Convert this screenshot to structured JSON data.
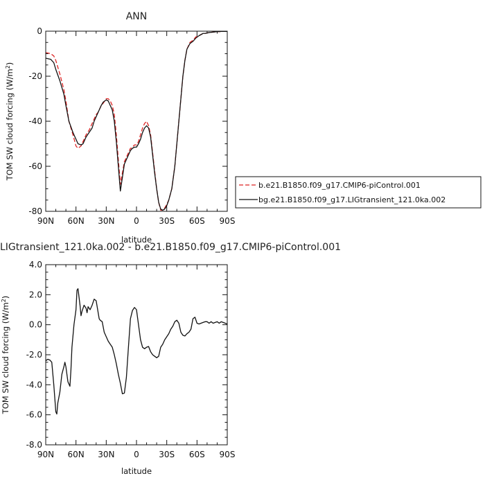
{
  "chart_data": [
    {
      "type": "line",
      "title": "ANN",
      "xlabel": "latitude",
      "ylabel": "TOM SW cloud forcing (W/m",
      "ylabel_sup": "2",
      "ylabel_close": ")",
      "xlim": [
        90,
        -90
      ],
      "ylim": [
        -80,
        0
      ],
      "x_ticks": [
        90,
        60,
        30,
        0,
        -30,
        -60,
        -90
      ],
      "x_tick_labels": [
        "90N",
        "60N",
        "30N",
        "0",
        "30S",
        "60S",
        "90S"
      ],
      "y_ticks": [
        0,
        -20,
        -40,
        -60,
        -80
      ],
      "y_tick_labels": [
        "0",
        "-20",
        "-40",
        "-60",
        "-80"
      ],
      "legend_position": "right",
      "series": [
        {
          "name": "b.e21.B1850.f09_g17.CMIP6-piControl.001",
          "color": "#dd2222",
          "dash": "dashed",
          "x": [
            90,
            85,
            82,
            80,
            76,
            72,
            70,
            67,
            63,
            60,
            58,
            55,
            53,
            50,
            47,
            44,
            42,
            40,
            38,
            35,
            33,
            30,
            28,
            26,
            24,
            22,
            20,
            18,
            16,
            14,
            12,
            10,
            8,
            6,
            5,
            4,
            2,
            0,
            -2,
            -4,
            -6,
            -8,
            -10,
            -12,
            -14,
            -16,
            -18,
            -20,
            -22,
            -24,
            -26,
            -28,
            -30,
            -32,
            -35,
            -38,
            -41,
            -44,
            -46,
            -48,
            -50,
            -53,
            -56,
            -59,
            -62,
            -64,
            -66,
            -68,
            -70,
            -72,
            -74,
            -76,
            -78,
            -80,
            -82,
            -84,
            -86,
            -88,
            -90
          ],
          "y": [
            -9.5,
            -10,
            -11,
            -13,
            -19,
            -26,
            -31,
            -40,
            -46,
            -51,
            -52,
            -51,
            -49,
            -46,
            -44,
            -41,
            -39,
            -37,
            -36,
            -33,
            -32,
            -30,
            -30,
            -31,
            -33,
            -37,
            -46,
            -57,
            -68,
            -63,
            -58,
            -56,
            -54,
            -52,
            -52,
            -51.5,
            -50.5,
            -50.5,
            -49,
            -46,
            -43,
            -41,
            -40,
            -42,
            -46,
            -54,
            -62,
            -70,
            -76,
            -79.5,
            -79.5,
            -78.5,
            -77,
            -75,
            -70,
            -60,
            -45,
            -30,
            -20,
            -13,
            -8,
            -5,
            -4,
            -2.5,
            -2,
            -1.5,
            -1,
            -1,
            -0.8,
            -0.6,
            -0.5,
            -0.4,
            -0.3,
            -0.2,
            -0.2,
            -0.1,
            -0.1,
            -0.1,
            -0.1
          ]
        },
        {
          "name": "bg.e21.B1850.f09_g17.LIGtransient_121.0ka.002",
          "color": "#111111",
          "dash": "solid",
          "x": [
            90,
            85,
            82,
            80,
            76,
            72,
            70,
            67,
            63,
            60,
            58,
            55,
            53,
            50,
            47,
            44,
            42,
            40,
            38,
            35,
            33,
            30,
            28,
            26,
            24,
            22,
            20,
            18,
            16,
            14,
            12,
            10,
            8,
            6,
            5,
            4,
            2,
            0,
            -2,
            -4,
            -6,
            -8,
            -10,
            -12,
            -14,
            -16,
            -18,
            -20,
            -22,
            -24,
            -26,
            -28,
            -30,
            -32,
            -35,
            -38,
            -41,
            -44,
            -46,
            -48,
            -50,
            -53,
            -56,
            -59,
            -62,
            -64,
            -66,
            -68,
            -70,
            -72,
            -74,
            -76,
            -78,
            -80,
            -82,
            -84,
            -86,
            -88,
            -90
          ],
          "y": [
            -12,
            -12.5,
            -14,
            -17,
            -22,
            -28,
            -33,
            -40,
            -45,
            -48,
            -50,
            -50.5,
            -50,
            -47,
            -45,
            -43,
            -40,
            -38,
            -36,
            -33,
            -31.5,
            -30.5,
            -31,
            -33,
            -35,
            -40,
            -49,
            -60,
            -71,
            -65,
            -59,
            -57,
            -55,
            -53,
            -52.5,
            -52,
            -51.5,
            -51.5,
            -50,
            -48,
            -45,
            -43,
            -42,
            -43,
            -47,
            -55,
            -63,
            -70,
            -76,
            -79,
            -79.5,
            -79,
            -77.5,
            -75,
            -70,
            -60,
            -45,
            -30,
            -20,
            -13,
            -8,
            -5.5,
            -4.5,
            -3,
            -2,
            -1.5,
            -1,
            -1,
            -0.8,
            -0.6,
            -0.5,
            -0.4,
            -0.3,
            -0.2,
            -0.2,
            -0.1,
            -0.1,
            -0.1,
            -0.1
          ]
        }
      ]
    },
    {
      "type": "line",
      "title": "LIGtransient_121.0ka.002 - b.e21.B1850.f09_g17.CMIP6-piControl.001",
      "xlabel": "latitude",
      "ylabel": "TOM SW cloud forcing (W/m",
      "ylabel_sup": "2",
      "ylabel_close": ")",
      "xlim": [
        90,
        -90
      ],
      "ylim": [
        -8,
        4
      ],
      "x_ticks": [
        90,
        60,
        30,
        0,
        -30,
        -60,
        -90
      ],
      "x_tick_labels": [
        "90N",
        "60N",
        "30N",
        "0",
        "30S",
        "60S",
        "90S"
      ],
      "y_ticks": [
        4,
        2,
        0,
        -2,
        -4,
        -6,
        -8
      ],
      "y_tick_labels": [
        "4.0",
        "2.0",
        "0.0",
        "-2.0",
        "-4.0",
        "-6.0",
        "-8.0"
      ],
      "series": [
        {
          "color": "#111111",
          "x": [
            90,
            88,
            86,
            84,
            82,
            80,
            79,
            78,
            76,
            74,
            72,
            71,
            70,
            68,
            66,
            65,
            64,
            62,
            60,
            59,
            58,
            56,
            55,
            54,
            52,
            50,
            49,
            48,
            46,
            44,
            42,
            40,
            38,
            37,
            36,
            34,
            32,
            30,
            28,
            26,
            24,
            22,
            20,
            18,
            16,
            14,
            12,
            10,
            8,
            6,
            4,
            2,
            0,
            -2,
            -4,
            -6,
            -8,
            -10,
            -12,
            -14,
            -16,
            -18,
            -20,
            -22,
            -24,
            -26,
            -28,
            -30,
            -32,
            -34,
            -36,
            -38,
            -40,
            -42,
            -44,
            -46,
            -48,
            -50,
            -52,
            -54,
            -56,
            -58,
            -60,
            -62,
            -64,
            -66,
            -68,
            -70,
            -72,
            -74,
            -76,
            -78,
            -80,
            -82,
            -84,
            -86,
            -88,
            -90
          ],
          "y": [
            -2.4,
            -2.3,
            -2.35,
            -2.5,
            -4.0,
            -5.8,
            -5.95,
            -5.2,
            -4.5,
            -3.3,
            -2.8,
            -2.5,
            -2.8,
            -3.8,
            -4.1,
            -3.0,
            -1.5,
            0.0,
            1.0,
            2.3,
            2.4,
            1.3,
            0.6,
            0.9,
            1.3,
            1.1,
            0.8,
            1.2,
            1.0,
            1.3,
            1.7,
            1.6,
            0.8,
            0.4,
            0.3,
            0.2,
            -0.5,
            -0.8,
            -1.1,
            -1.3,
            -1.5,
            -2.0,
            -2.6,
            -3.3,
            -3.9,
            -4.6,
            -4.55,
            -3.5,
            -1.5,
            0.4,
            0.95,
            1.15,
            1.0,
            0.0,
            -1.0,
            -1.5,
            -1.6,
            -1.5,
            -1.45,
            -1.8,
            -2.0,
            -2.1,
            -2.2,
            -2.1,
            -1.5,
            -1.3,
            -1.0,
            -0.8,
            -0.6,
            -0.3,
            -0.1,
            0.2,
            0.3,
            0.1,
            -0.5,
            -0.7,
            -0.75,
            -0.6,
            -0.5,
            -0.3,
            0.4,
            0.5,
            0.1,
            0.05,
            0.1,
            0.15,
            0.2,
            0.2,
            0.1,
            0.2,
            0.1,
            0.15,
            0.2,
            0.1,
            0.2,
            0.15,
            0.1,
            0.05
          ]
        }
      ]
    }
  ]
}
